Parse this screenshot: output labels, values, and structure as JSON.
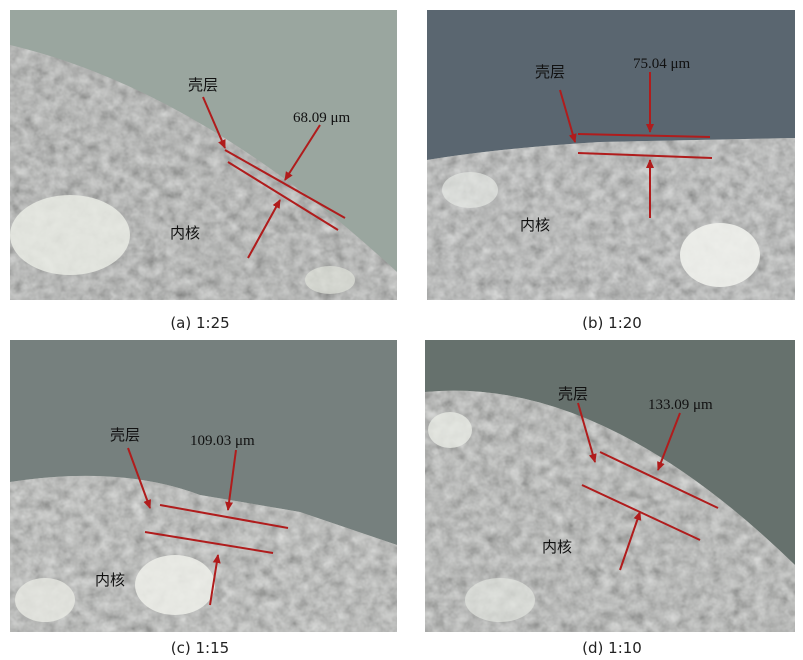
{
  "panels": [
    {
      "caption": "(a) 1:25",
      "shell_label": "壳层",
      "core_label": "内核",
      "thickness": "68.09 μm"
    },
    {
      "caption": "(b) 1:20",
      "shell_label": "壳层",
      "core_label": "内核",
      "thickness": "75.04 μm"
    },
    {
      "caption": "(c) 1:15",
      "shell_label": "壳层",
      "core_label": "内核",
      "thickness": "109.03 μm"
    },
    {
      "caption": "(d) 1:10",
      "shell_label": "壳层",
      "core_label": "内核",
      "thickness": "133.09 μm"
    }
  ]
}
